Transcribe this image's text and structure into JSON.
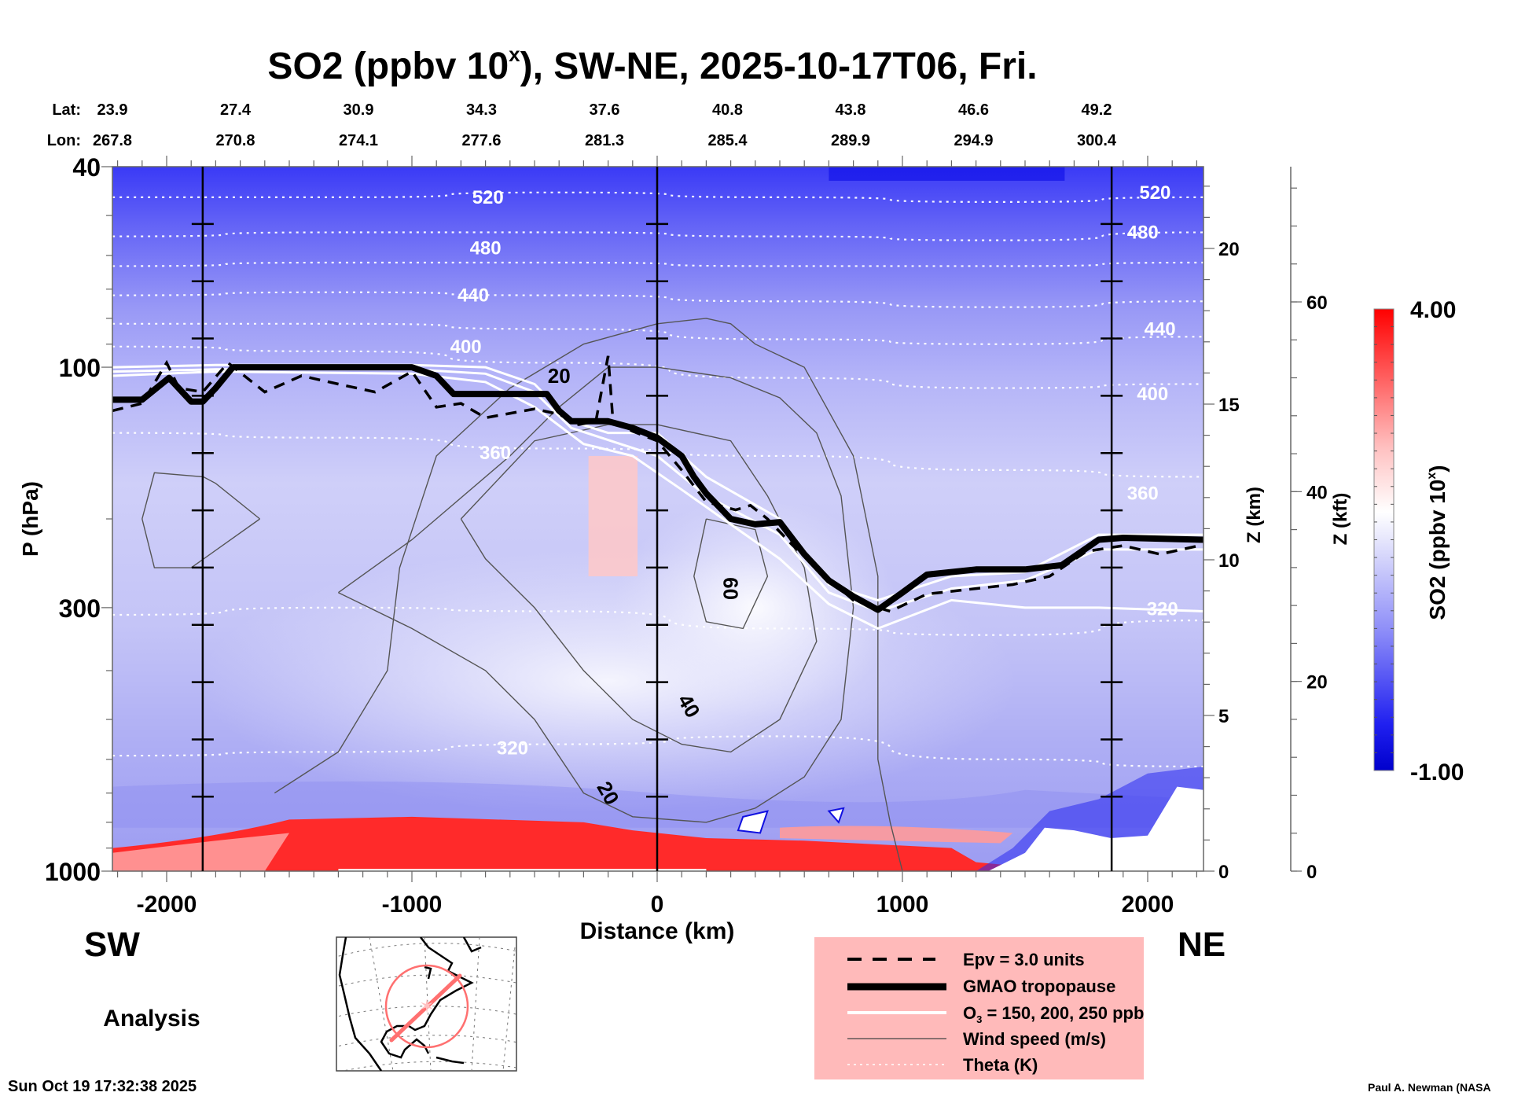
{
  "chart_data": {
    "type": "heatmap",
    "title": "SO2 (ppbv 10",
    "title_superscript": "x",
    "title_suffix": "), SW-NE, 2025-10-17T06, Fri.",
    "xlabel": "Distance (km)",
    "ylabel": "P (hPa)",
    "y2label": "Z (km)",
    "y3label": "Z (kft)",
    "colorbar_label": "SO2 (ppbv 10",
    "colorbar_label_sup": "x",
    "colorbar_label_suffix": ")",
    "xlim": [
      -2221,
      2228
    ],
    "ylim_hpa": [
      1000,
      40
    ],
    "x_ticks": [
      -2000,
      -1000,
      0,
      1000,
      2000
    ],
    "x_tick_labels": [
      "-2000",
      "-1000",
      "0",
      "1000",
      "2000"
    ],
    "y_ticks_hpa": [
      40,
      100,
      300,
      1000
    ],
    "y_tick_labels": [
      "40",
      "100",
      "300",
      "1000"
    ],
    "z_km_ticks": [
      0,
      5,
      10,
      15,
      20
    ],
    "z_kft_ticks": [
      0,
      20,
      40,
      60
    ],
    "colorbar": {
      "min": -1.0,
      "max": 4.0,
      "min_label": "-1.00",
      "max_label": "4.00",
      "levels": 26,
      "low_color": "#0000CC",
      "mid_color": "#FFFFFF",
      "high_color": "#FF0000",
      "mid_value": 1.5
    },
    "lat_label": "Lat:",
    "lon_label": "Lon:",
    "lat_values": [
      "23.9",
      "27.4",
      "30.9",
      "34.3",
      "37.6",
      "40.8",
      "43.8",
      "46.6",
      "49.2"
    ],
    "lon_values": [
      "267.8",
      "270.8",
      "274.1",
      "277.6",
      "281.3",
      "285.4",
      "289.9",
      "294.9",
      "300.4"
    ],
    "vertical_markers_km": [
      -1853,
      0,
      1853
    ],
    "theta_labels": [
      {
        "text": "520",
        "x_km": -690,
        "p": 46
      },
      {
        "text": "480",
        "x_km": -700,
        "p": 58
      },
      {
        "text": "440",
        "x_km": -750,
        "p": 72
      },
      {
        "text": "400",
        "x_km": -780,
        "p": 91
      },
      {
        "text": "360",
        "x_km": -660,
        "p": 148
      },
      {
        "text": "320",
        "x_km": -590,
        "p": 570
      },
      {
        "text": "520",
        "x_km": 2030,
        "p": 45
      },
      {
        "text": "480",
        "x_km": 1980,
        "p": 54
      },
      {
        "text": "440",
        "x_km": 2050,
        "p": 84
      },
      {
        "text": "400",
        "x_km": 2020,
        "p": 113
      },
      {
        "text": "360",
        "x_km": 1980,
        "p": 178
      },
      {
        "text": "320",
        "x_km": 2060,
        "p": 302
      }
    ],
    "theta_levels_p": [
      [
        46,
        46,
        45,
        46,
        47,
        46
      ],
      [
        55,
        54,
        54,
        55,
        56,
        54
      ],
      [
        63,
        62,
        62,
        63,
        63,
        62
      ],
      [
        72,
        71,
        72,
        74,
        76,
        74
      ],
      [
        82,
        82,
        84,
        88,
        90,
        87
      ],
      [
        91,
        93,
        98,
        105,
        110,
        108
      ],
      [
        135,
        138,
        145,
        150,
        160,
        165
      ],
      [
        310,
        300,
        305,
        330,
        340,
        318
      ],
      [
        590,
        580,
        560,
        540,
        600,
        620
      ]
    ],
    "tropopause_hpa": [
      [
        -2221,
        116
      ],
      [
        -2100,
        116
      ],
      [
        -1990,
        105
      ],
      [
        -1900,
        117
      ],
      [
        -1853,
        117
      ],
      [
        -1800,
        110
      ],
      [
        -1730,
        100
      ],
      [
        -1400,
        100
      ],
      [
        -1000,
        100
      ],
      [
        -900,
        104
      ],
      [
        -830,
        113
      ],
      [
        -450,
        113
      ],
      [
        -400,
        122
      ],
      [
        -350,
        128
      ],
      [
        -200,
        128
      ],
      [
        -100,
        132
      ],
      [
        0,
        138
      ],
      [
        100,
        150
      ],
      [
        150,
        165
      ],
      [
        200,
        178
      ],
      [
        300,
        200
      ],
      [
        400,
        205
      ],
      [
        500,
        203
      ],
      [
        600,
        235
      ],
      [
        700,
        265
      ],
      [
        800,
        285
      ],
      [
        900,
        303
      ],
      [
        1000,
        280
      ],
      [
        1100,
        258
      ],
      [
        1300,
        252
      ],
      [
        1500,
        252
      ],
      [
        1650,
        247
      ],
      [
        1800,
        220
      ],
      [
        1900,
        218
      ],
      [
        2228,
        220
      ]
    ],
    "epv_hpa": [
      [
        -2221,
        122
      ],
      [
        -2100,
        118
      ],
      [
        -2000,
        98
      ],
      [
        -1950,
        110
      ],
      [
        -1853,
        112
      ],
      [
        -1750,
        98
      ],
      [
        -1600,
        112
      ],
      [
        -1450,
        104
      ],
      [
        -1300,
        108
      ],
      [
        -1150,
        112
      ],
      [
        -1000,
        102
      ],
      [
        -900,
        120
      ],
      [
        -800,
        118
      ],
      [
        -700,
        126
      ],
      [
        -500,
        121
      ],
      [
        -400,
        124
      ],
      [
        -320,
        130
      ],
      [
        -250,
        128
      ],
      [
        -200,
        95
      ],
      [
        -180,
        128
      ],
      [
        -100,
        134
      ],
      [
        0,
        140
      ],
      [
        100,
        160
      ],
      [
        200,
        185
      ],
      [
        320,
        192
      ],
      [
        380,
        188
      ],
      [
        450,
        200
      ],
      [
        550,
        225
      ],
      [
        650,
        250
      ],
      [
        800,
        290
      ],
      [
        950,
        305
      ],
      [
        1100,
        282
      ],
      [
        1300,
        275
      ],
      [
        1450,
        270
      ],
      [
        1600,
        260
      ],
      [
        1750,
        232
      ],
      [
        1900,
        226
      ],
      [
        2050,
        235
      ],
      [
        2228,
        225
      ]
    ],
    "ozone_contours_hpa": [
      [
        [
          -2221,
          100
        ],
        [
          -1800,
          99
        ],
        [
          -1000,
          99
        ],
        [
          -700,
          100
        ],
        [
          -500,
          108
        ],
        [
          -350,
          128
        ],
        [
          -200,
          135
        ],
        [
          0,
          135
        ],
        [
          200,
          165
        ],
        [
          500,
          200
        ],
        [
          700,
          270
        ],
        [
          900,
          290
        ],
        [
          1200,
          260
        ],
        [
          1500,
          255
        ],
        [
          1800,
          215
        ],
        [
          2228,
          215
        ]
      ],
      [
        [
          -2221,
          102
        ],
        [
          -1800,
          101
        ],
        [
          -1000,
          101
        ],
        [
          -700,
          103
        ],
        [
          -500,
          112
        ],
        [
          -350,
          132
        ],
        [
          -150,
          142
        ],
        [
          0,
          150
        ],
        [
          200,
          180
        ],
        [
          500,
          215
        ],
        [
          700,
          280
        ],
        [
          900,
          305
        ],
        [
          1200,
          275
        ],
        [
          1500,
          265
        ],
        [
          1800,
          230
        ],
        [
          2228,
          230
        ]
      ],
      [
        [
          -2221,
          104
        ],
        [
          -1800,
          102
        ],
        [
          -1000,
          103
        ],
        [
          -700,
          107
        ],
        [
          -500,
          120
        ],
        [
          -300,
          142
        ],
        [
          -100,
          150
        ],
        [
          100,
          175
        ],
        [
          300,
          205
        ],
        [
          500,
          240
        ],
        [
          700,
          295
        ],
        [
          900,
          330
        ],
        [
          1200,
          290
        ],
        [
          1500,
          300
        ],
        [
          1800,
          300
        ],
        [
          2228,
          305
        ]
      ]
    ],
    "wind_contours": [
      {
        "label": "20",
        "points_hpa": [
          [
            -1620,
            200
          ],
          [
            -1800,
            170
          ],
          [
            -1850,
            165
          ],
          [
            -2050,
            162
          ],
          [
            -2100,
            200
          ],
          [
            -2050,
            250
          ],
          [
            -1900,
            250
          ],
          [
            -1620,
            200
          ]
        ]
      },
      {
        "label": "20",
        "points_hpa": [
          [
            -1560,
            700
          ],
          [
            -1300,
            580
          ],
          [
            -1100,
            400
          ],
          [
            -1050,
            250
          ],
          [
            -900,
            150
          ],
          [
            -600,
            110
          ],
          [
            -300,
            90
          ],
          [
            0,
            82
          ],
          [
            200,
            80
          ],
          [
            300,
            82
          ],
          [
            400,
            90
          ],
          [
            600,
            100
          ],
          [
            800,
            150
          ],
          [
            900,
            260
          ],
          [
            900,
            600
          ],
          [
            950,
            800
          ],
          [
            1000,
            1000
          ]
        ]
      },
      {
        "label": "20",
        "points_hpa": [
          [
            -1300,
            280
          ],
          [
            -1000,
            220
          ],
          [
            -600,
            150
          ],
          [
            -400,
            120
          ],
          [
            -200,
            100
          ],
          [
            0,
            100
          ],
          [
            300,
            105
          ],
          [
            500,
            115
          ],
          [
            650,
            135
          ],
          [
            750,
            180
          ],
          [
            800,
            300
          ],
          [
            750,
            500
          ],
          [
            600,
            650
          ],
          [
            400,
            750
          ],
          [
            200,
            800
          ],
          [
            -100,
            780
          ],
          [
            -300,
            700
          ],
          [
            -500,
            500
          ],
          [
            -700,
            400
          ],
          [
            -1000,
            330
          ],
          [
            -1300,
            280
          ]
        ]
      },
      {
        "label": "40",
        "points_hpa": [
          [
            -800,
            200
          ],
          [
            -500,
            140
          ],
          [
            -200,
            130
          ],
          [
            0,
            130
          ],
          [
            300,
            140
          ],
          [
            450,
            180
          ],
          [
            600,
            250
          ],
          [
            650,
            350
          ],
          [
            500,
            500
          ],
          [
            300,
            580
          ],
          [
            100,
            560
          ],
          [
            -100,
            500
          ],
          [
            -300,
            400
          ],
          [
            -500,
            300
          ],
          [
            -700,
            240
          ],
          [
            -800,
            200
          ]
        ]
      },
      {
        "label": "60",
        "points_hpa": [
          [
            200,
            200
          ],
          [
            400,
            210
          ],
          [
            450,
            260
          ],
          [
            350,
            330
          ],
          [
            200,
            320
          ],
          [
            150,
            260
          ],
          [
            200,
            200
          ]
        ]
      }
    ],
    "wind_labels": [
      {
        "text": "20",
        "x_km": -400,
        "p": 104
      },
      {
        "text": "60",
        "x_km": 300,
        "p": 275,
        "rotate": 90
      },
      {
        "text": "40",
        "x_km": 130,
        "p": 470,
        "rotate": 60
      },
      {
        "text": "20",
        "x_km": -200,
        "p": 700,
        "rotate": 60
      }
    ],
    "so2_features": [
      {
        "kind": "surface_red_band",
        "x_km_range": [
          -2221,
          1500
        ],
        "top_hpa": 820
      },
      {
        "kind": "red_column",
        "x_km_range": [
          -280,
          -80
        ],
        "p_range": [
          150,
          260
        ]
      },
      {
        "kind": "stratosphere_blue",
        "p_range": [
          40,
          90
        ]
      }
    ]
  },
  "labels": {
    "sw": "SW",
    "ne": "NE",
    "analysis": "Analysis",
    "timestamp": "Sun Oct 19 17:32:38 2025",
    "credit": "Paul A. Newman (NASA"
  },
  "legend": {
    "background": "#FFBABA",
    "items": [
      {
        "label": "Epv = 3.0 units",
        "style": "dashed"
      },
      {
        "label": "GMAO tropopause",
        "style": "thick"
      },
      {
        "label": "O",
        "sub": "3",
        "label_suffix": " = 150, 200, 250 ppb",
        "style": "white"
      },
      {
        "label": "Wind speed (m/s)",
        "style": "thin"
      },
      {
        "label": "Theta (K)",
        "style": "dotted"
      }
    ]
  },
  "inset_map": {
    "track_color": "#FF6B6B",
    "label": "North America section track"
  }
}
